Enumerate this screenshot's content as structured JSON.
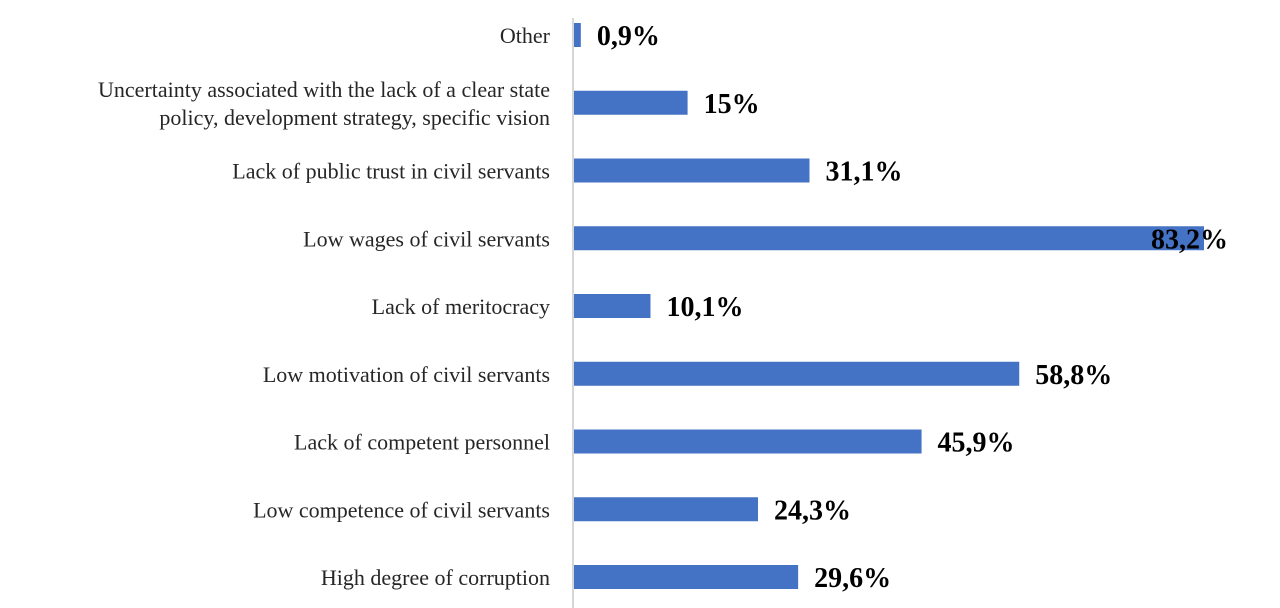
{
  "chart_data": {
    "type": "bar",
    "orientation": "horizontal",
    "categories": [
      "Other",
      [
        "Uncertainty associated with the lack of a clear state",
        "policy, development strategy, specific vision"
      ],
      "Lack of public trust in civil servants",
      "Low wages of civil servants",
      "Lack of meritocracy",
      "Low motivation of civil servants",
      "Lack of competent personnel",
      "Low competence of civil servants",
      "High degree of corruption"
    ],
    "values": [
      0.9,
      15,
      31.1,
      83.2,
      10.1,
      58.8,
      45.9,
      24.3,
      29.6
    ],
    "data_labels": [
      "0,9%",
      "15%",
      "31,1%",
      "83,2%",
      "10,1%",
      "58,8%",
      "45,9%",
      "24,3%",
      "29,6%"
    ],
    "xlim": [
      0,
      83.2
    ],
    "bar_color": "#4472c4",
    "grid": false,
    "legend": "none"
  }
}
